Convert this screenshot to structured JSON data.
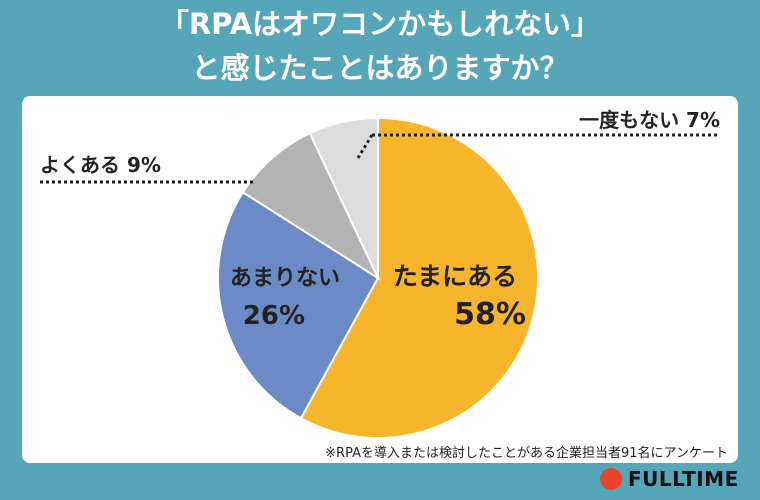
{
  "title_line1": "「RPAはオワコンかもしれない」",
  "title_line2": "と感じたことはありますか？",
  "footnote": "※RPAを導入または検討したことがある企業担当者91名にアンケート",
  "logo": "FULLTIME",
  "chart_data": {
    "type": "pie",
    "start": "top",
    "direction": "clockwise",
    "slices": [
      {
        "label": "たまにある",
        "value": 58,
        "value_label": "58%",
        "color": "#f7b52c"
      },
      {
        "label": "あまりない",
        "value": 26,
        "value_label": "26%",
        "color": "#6b8ac6"
      },
      {
        "label": "よくある",
        "value": 9,
        "value_label": "9%",
        "color": "#b3b3b3"
      },
      {
        "label": "一度もない",
        "value": 7,
        "value_label": "7%",
        "color": "#dcdcdc"
      }
    ]
  }
}
